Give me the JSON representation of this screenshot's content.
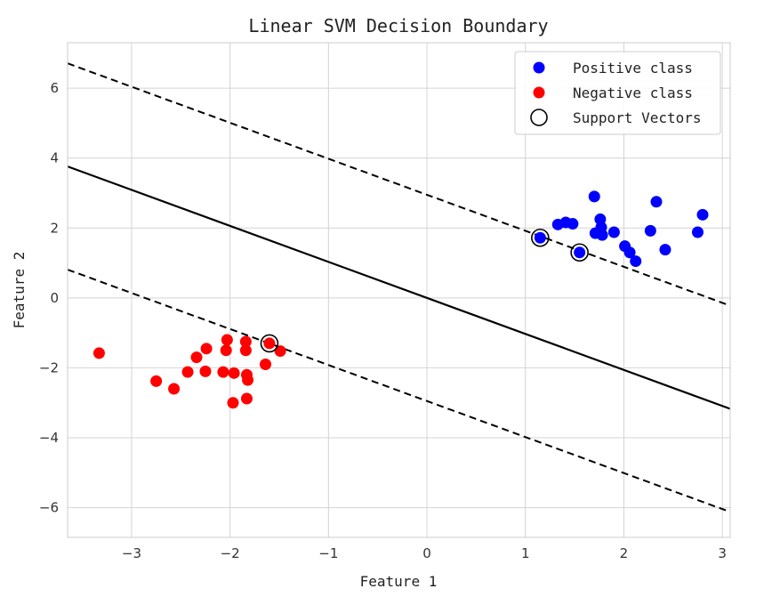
{
  "chart_data": {
    "type": "scatter",
    "title": "Linear SVM Decision Boundary",
    "xlabel": "Feature 1",
    "ylabel": "Feature 2",
    "xlim": [
      -3.65,
      3.08
    ],
    "ylim": [
      -6.85,
      7.3
    ],
    "xticks": [
      -3,
      -2,
      -1,
      0,
      1,
      2,
      3
    ],
    "yticks": [
      -6,
      -4,
      -2,
      0,
      2,
      4,
      6
    ],
    "xtick_labels": [
      "−3",
      "−2",
      "−1",
      "0",
      "1",
      "2",
      "3"
    ],
    "ytick_labels": [
      "−6",
      "−4",
      "−2",
      "0",
      "2",
      "4",
      "6"
    ],
    "grid": true,
    "legend_position": "top-right",
    "colors": {
      "positive": "#0000ff",
      "negative": "#ff0000",
      "boundary": "#000000",
      "grid": "#d4d4d4"
    },
    "series": [
      {
        "name": "Positive class",
        "marker": "dot",
        "color": "#0000ff",
        "points": [
          [
            1.15,
            1.72
          ],
          [
            1.33,
            2.1
          ],
          [
            1.41,
            2.16
          ],
          [
            1.48,
            2.12
          ],
          [
            1.55,
            1.3
          ],
          [
            1.7,
            2.9
          ],
          [
            1.71,
            1.85
          ],
          [
            1.76,
            2.25
          ],
          [
            1.77,
            2.02
          ],
          [
            1.78,
            1.8
          ],
          [
            1.9,
            1.88
          ],
          [
            2.01,
            1.48
          ],
          [
            2.06,
            1.3
          ],
          [
            2.12,
            1.05
          ],
          [
            2.27,
            1.92
          ],
          [
            2.33,
            2.75
          ],
          [
            2.42,
            1.38
          ],
          [
            2.75,
            1.88
          ],
          [
            2.8,
            2.38
          ]
        ]
      },
      {
        "name": "Negative class",
        "marker": "dot",
        "color": "#ff0000",
        "points": [
          [
            -3.33,
            -1.58
          ],
          [
            -2.75,
            -2.38
          ],
          [
            -2.57,
            -2.6
          ],
          [
            -2.43,
            -2.12
          ],
          [
            -2.34,
            -1.7
          ],
          [
            -2.25,
            -2.1
          ],
          [
            -2.24,
            -1.45
          ],
          [
            -2.07,
            -2.12
          ],
          [
            -2.04,
            -1.5
          ],
          [
            -2.03,
            -1.2
          ],
          [
            -1.96,
            -2.15
          ],
          [
            -1.97,
            -3.0
          ],
          [
            -1.84,
            -1.25
          ],
          [
            -1.84,
            -1.5
          ],
          [
            -1.83,
            -2.2
          ],
          [
            -1.82,
            -2.35
          ],
          [
            -1.83,
            -2.88
          ],
          [
            -1.64,
            -1.9
          ],
          [
            -1.6,
            -1.3
          ],
          [
            -1.49,
            -1.52
          ]
        ]
      },
      {
        "name": "Support Vectors",
        "marker": "ring",
        "color": "#000000",
        "points": [
          [
            1.15,
            1.72
          ],
          [
            1.55,
            1.3
          ],
          [
            -1.6,
            -1.3
          ]
        ]
      }
    ],
    "lines": [
      {
        "style": "solid",
        "slope": -1.03,
        "intercept": 0.0
      },
      {
        "style": "dashed",
        "slope": -1.03,
        "intercept": 2.95
      },
      {
        "style": "dashed",
        "slope": -1.03,
        "intercept": -2.95
      }
    ]
  }
}
